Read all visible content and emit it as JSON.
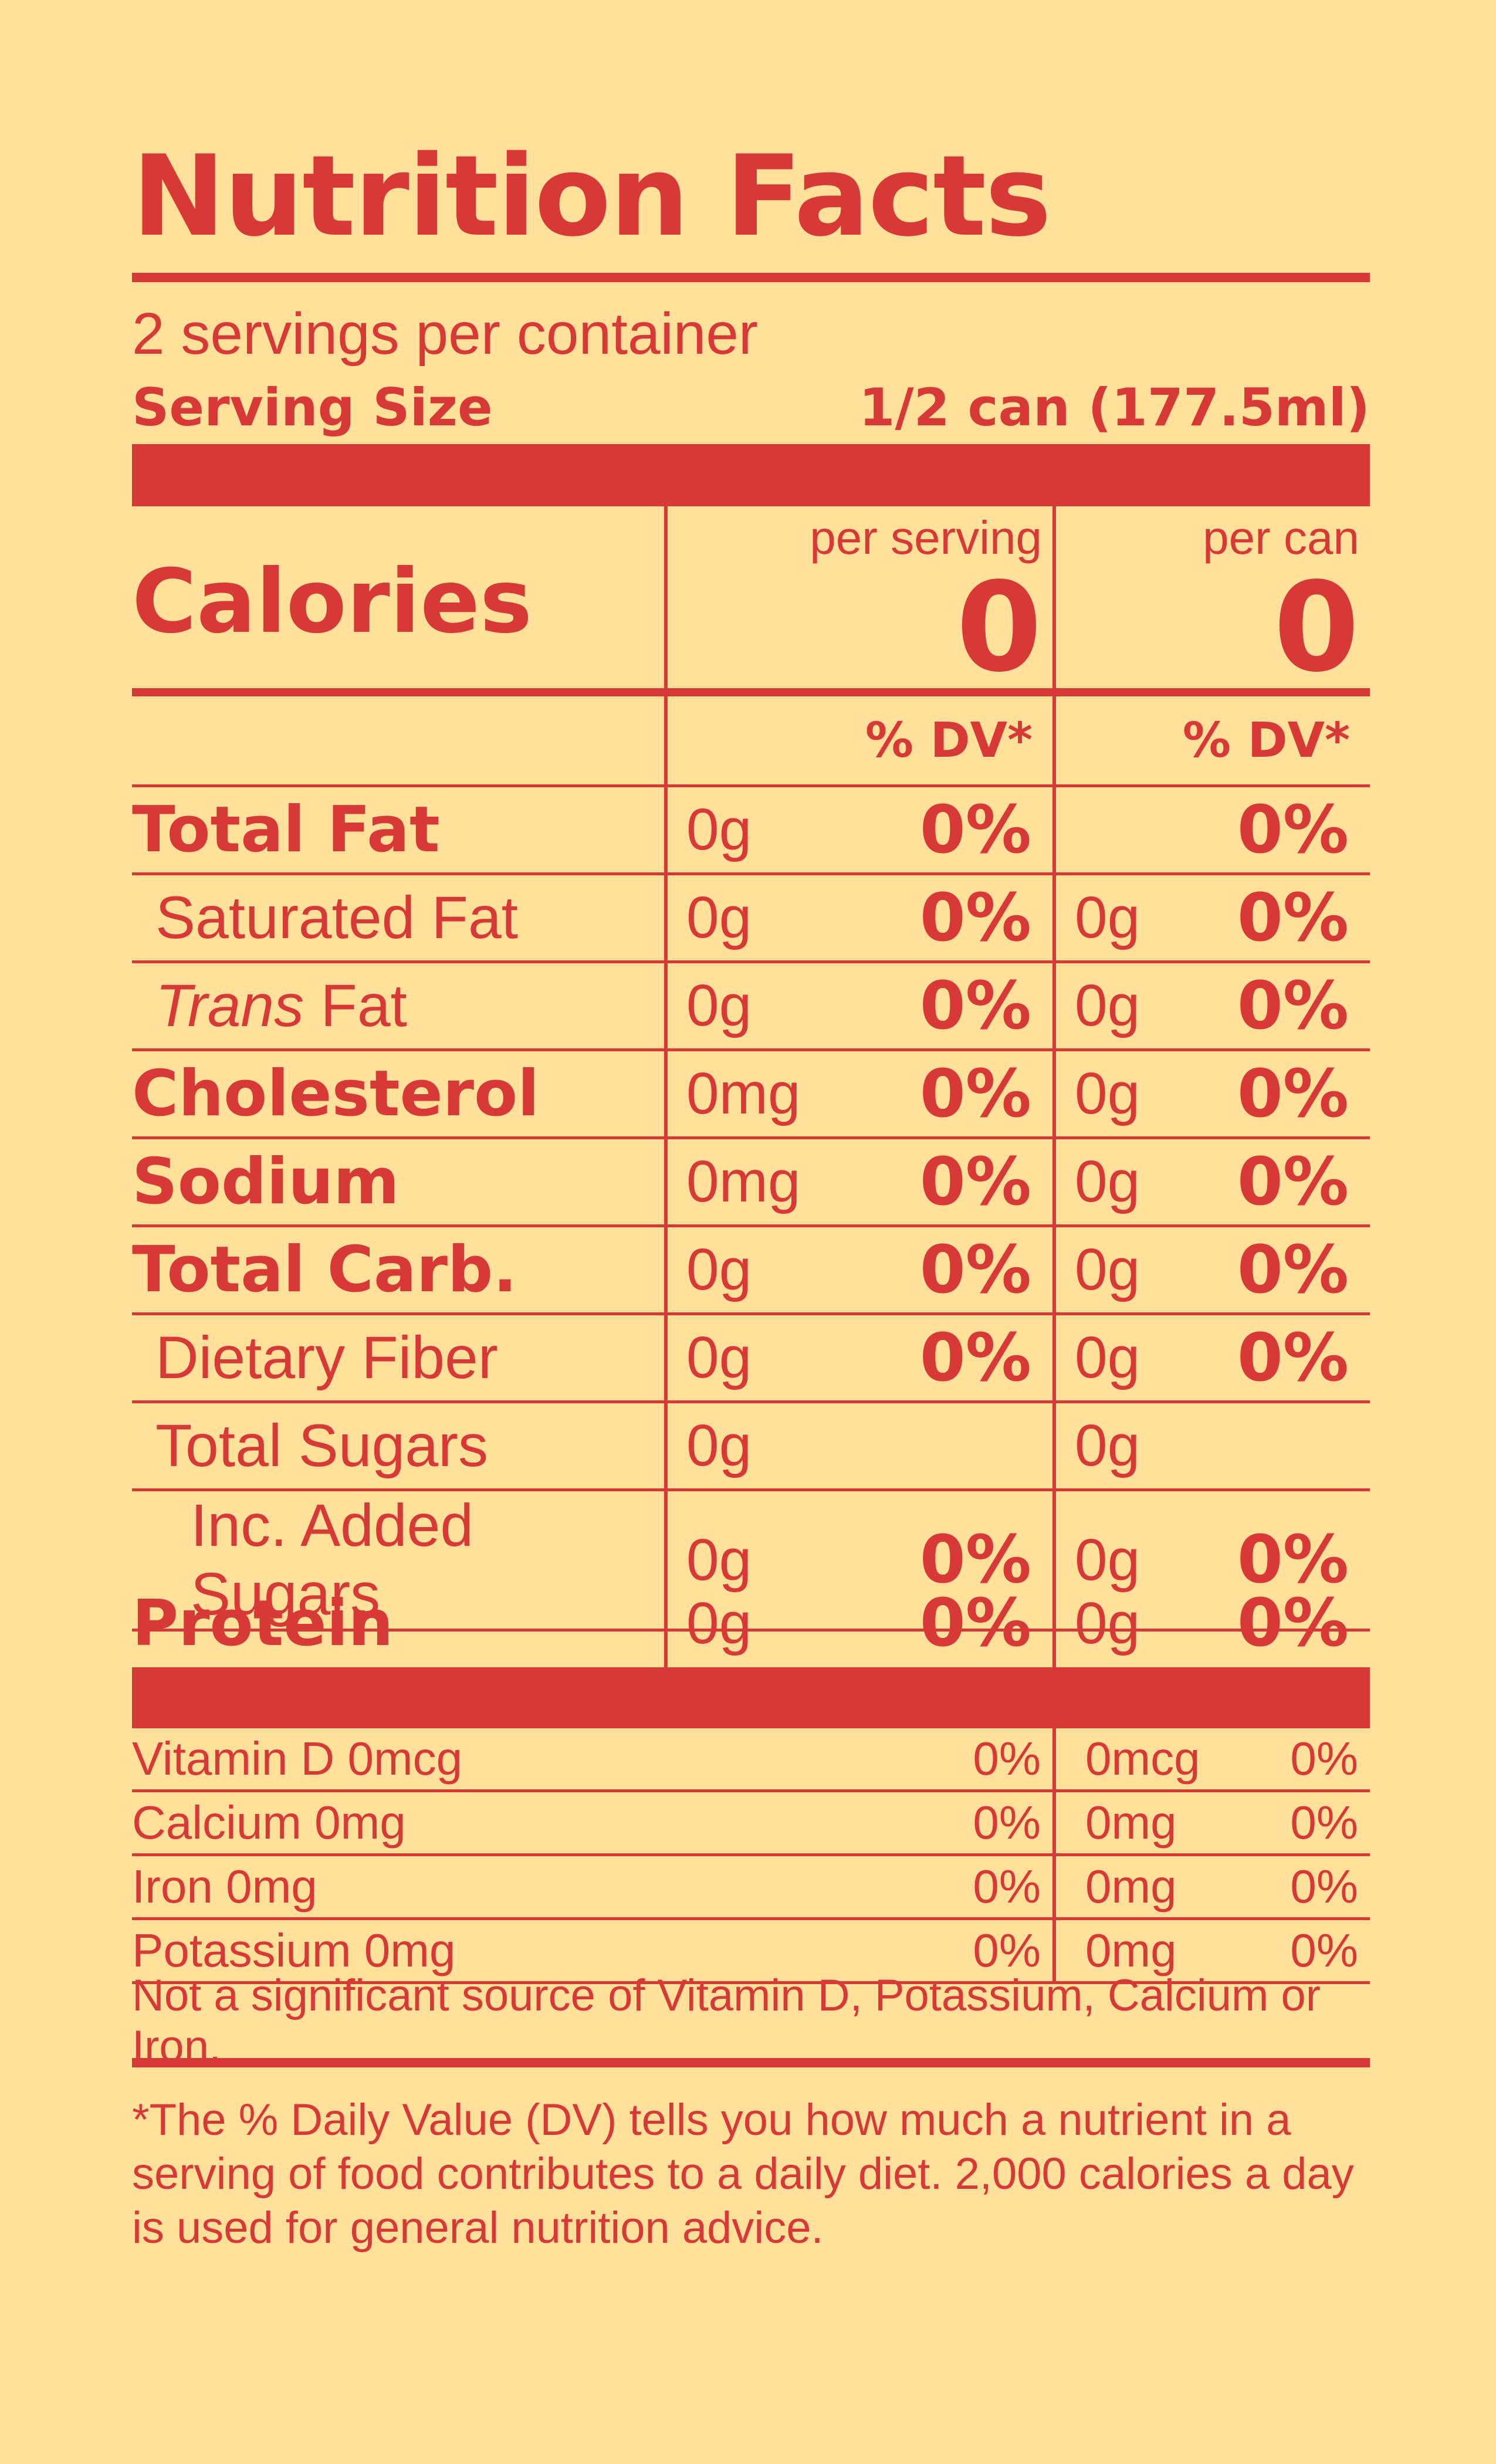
{
  "title": "Nutrition Facts",
  "servings_per_container": "2 servings per container",
  "serving_size": {
    "label": "Serving Size",
    "value": "1/2 can (177.5ml)"
  },
  "columns": {
    "per_serving": "per serving",
    "per_can": "per can",
    "dv": "% DV*"
  },
  "calories": {
    "label": "Calories",
    "per_serving": "0",
    "per_can": "0"
  },
  "nutrients": [
    {
      "name": "Total Fat",
      "style": "bold",
      "serv_amt": "0g",
      "serv_dv": "0%",
      "can_amt": "",
      "can_dv": "0%"
    },
    {
      "name": "Saturated Fat",
      "style": "indent",
      "serv_amt": "0g",
      "serv_dv": "0%",
      "can_amt": "0g",
      "can_dv": "0%"
    },
    {
      "name_prefix": "Trans",
      "name": " Fat",
      "style": "indent",
      "serv_amt": "0g",
      "serv_dv": "0%",
      "can_amt": "0g",
      "can_dv": "0%"
    },
    {
      "name": "Cholesterol",
      "style": "bold",
      "serv_amt": "0mg",
      "serv_dv": "0%",
      "can_amt": "0g",
      "can_dv": "0%"
    },
    {
      "name": "Sodium",
      "style": "bold",
      "serv_amt": "0mg",
      "serv_dv": "0%",
      "can_amt": "0g",
      "can_dv": "0%"
    },
    {
      "name": "Total Carb.",
      "style": "bold",
      "serv_amt": "0g",
      "serv_dv": "0%",
      "can_amt": "0g",
      "can_dv": "0%"
    },
    {
      "name": "Dietary Fiber",
      "style": "indent",
      "serv_amt": "0g",
      "serv_dv": "0%",
      "can_amt": "0g",
      "can_dv": "0%"
    },
    {
      "name": "Total Sugars",
      "style": "indent",
      "serv_amt": "0g",
      "serv_dv": "",
      "can_amt": "0g",
      "can_dv": ""
    },
    {
      "name": "Inc. Added Sugars",
      "style": "indent2",
      "serv_amt": "0g",
      "serv_dv": "0%",
      "can_amt": "0g",
      "can_dv": "0%"
    },
    {
      "name": "Protein",
      "style": "bold",
      "serv_amt": "0g",
      "serv_dv": "0%",
      "can_amt": "0g",
      "can_dv": "0%"
    }
  ],
  "vitamins": [
    {
      "name": "Vitamin D 0mcg",
      "serv_dv": "0%",
      "can_amt": "0mcg",
      "can_dv": "0%"
    },
    {
      "name": "Calcium 0mg",
      "serv_dv": "0%",
      "can_amt": "0mg",
      "can_dv": "0%"
    },
    {
      "name": "Iron 0mg",
      "serv_dv": "0%",
      "can_amt": "0mg",
      "can_dv": "0%"
    },
    {
      "name": "Potassium 0mg",
      "serv_dv": "0%",
      "can_amt": "0mg",
      "can_dv": "0%"
    }
  ],
  "not_significant": "Not a significant source of Vitamin D, Potassium, Calcium or Iron.",
  "footnote": "*The % Daily Value (DV) tells you how much a nutrient in a serving of food contributes to a daily diet. 2,000 calories a day is used for general nutrition advice.",
  "colors": {
    "background": "#ffe09a",
    "accent": "#d73a36"
  }
}
